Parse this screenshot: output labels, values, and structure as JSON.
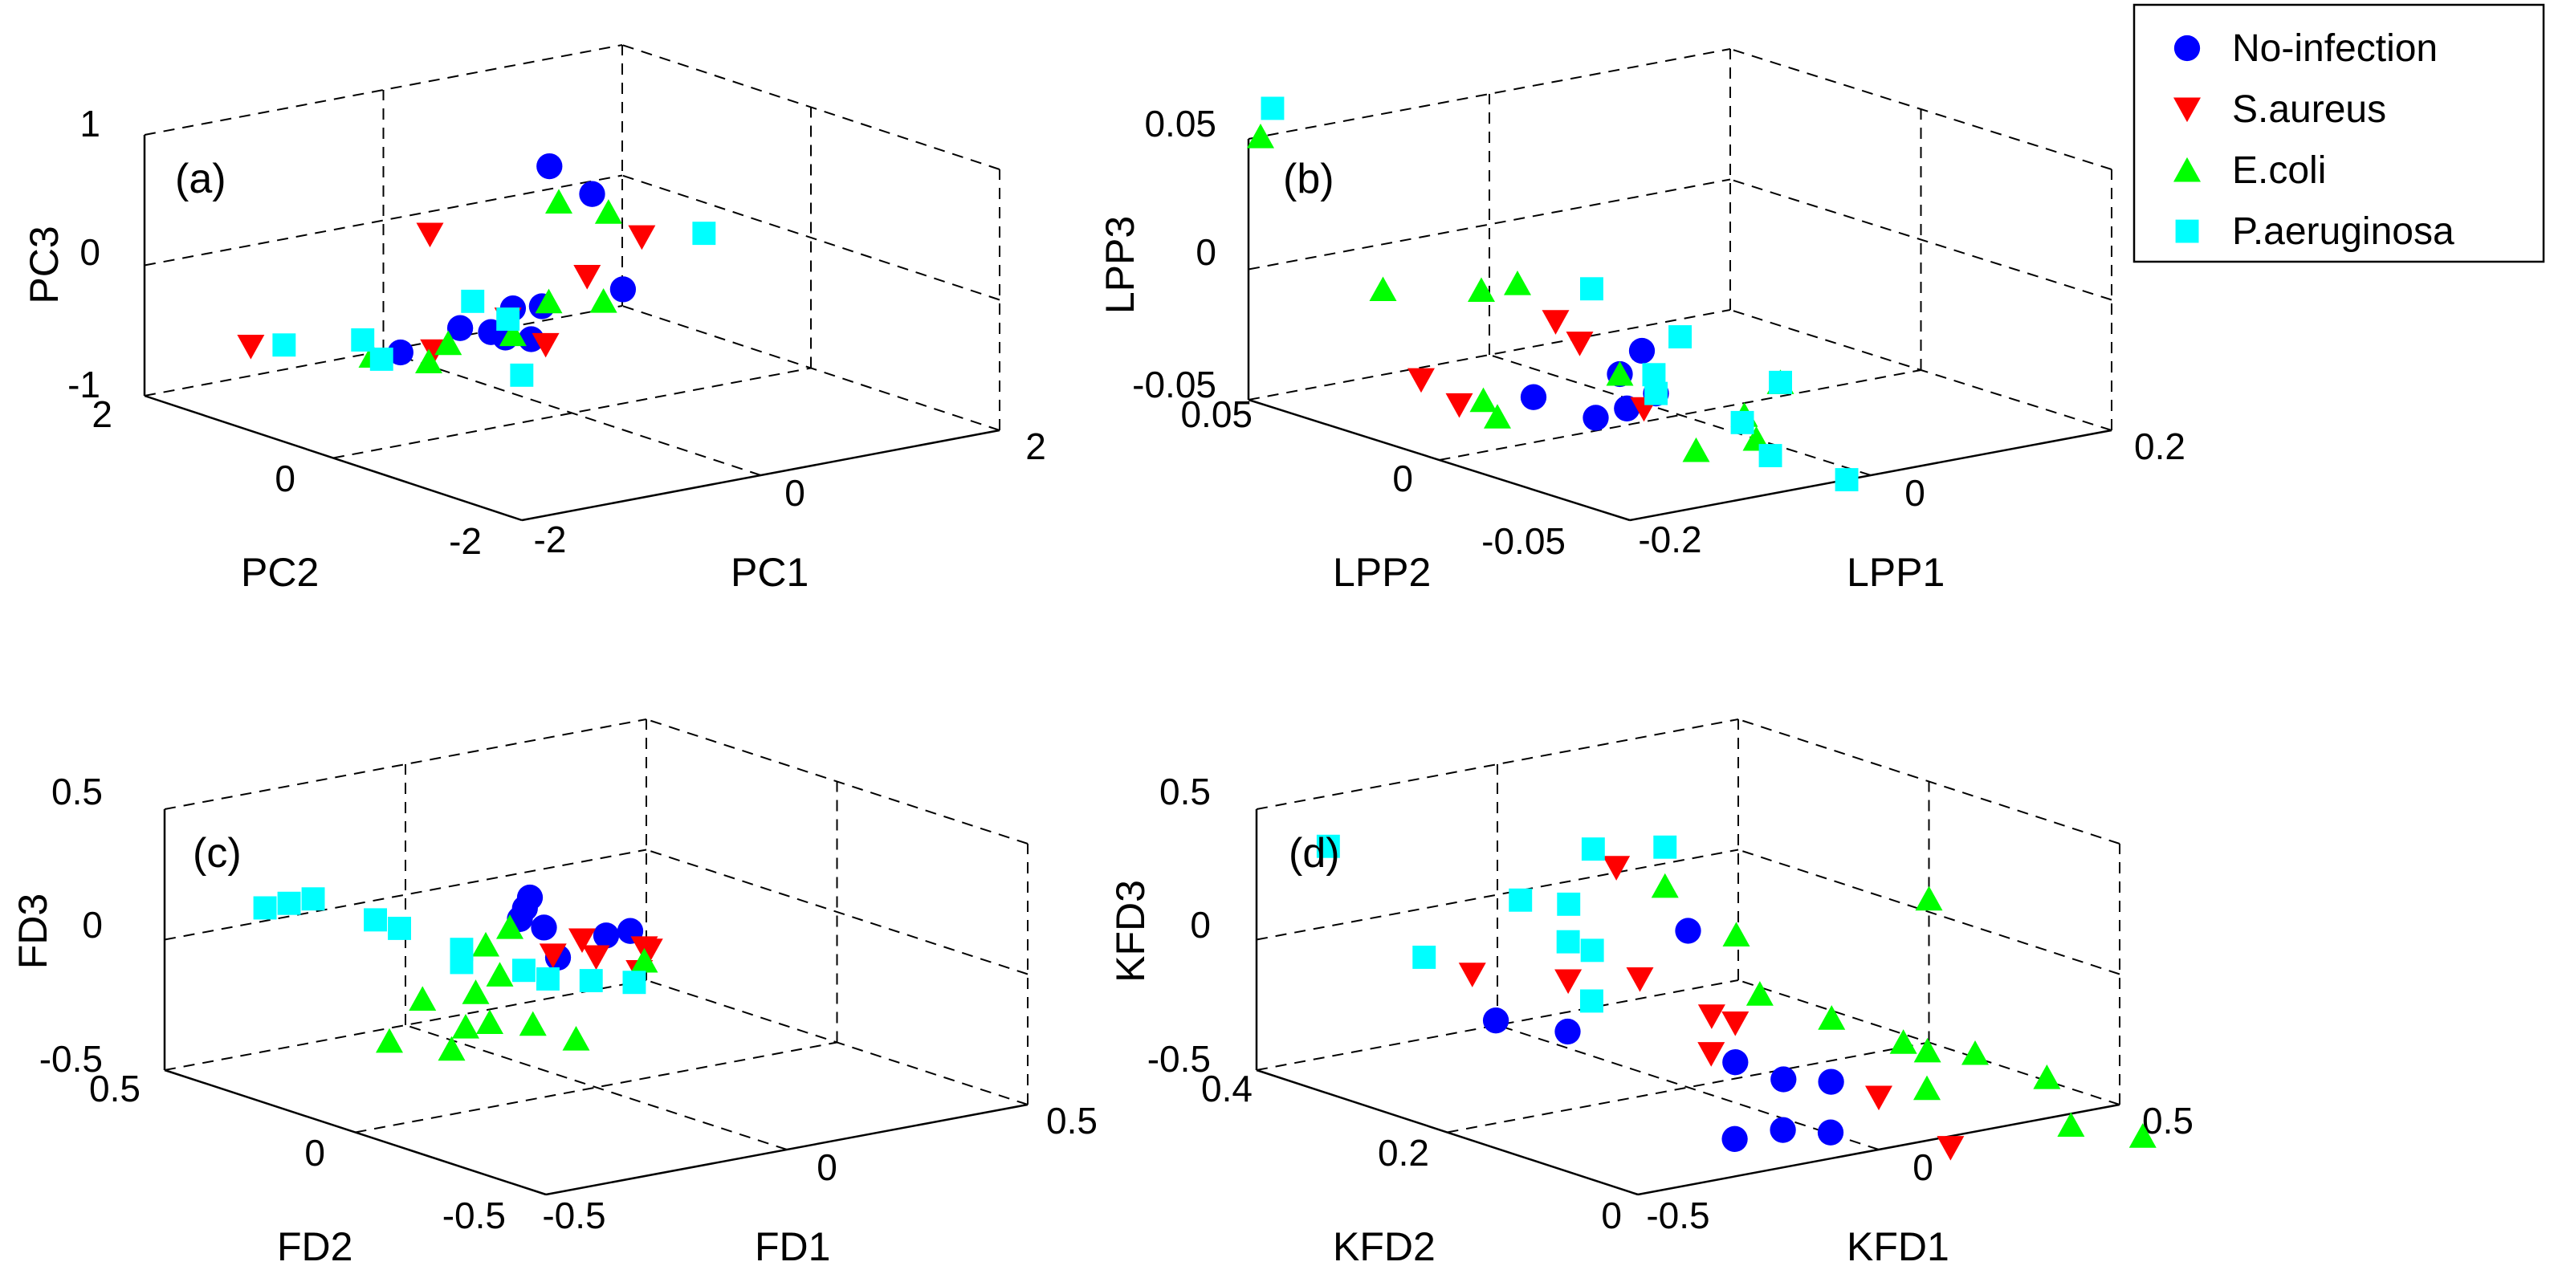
{
  "legend": {
    "position": "top-right",
    "entries": [
      {
        "label": "No-infection",
        "marker": "circle",
        "color": "#0000ff"
      },
      {
        "label": "S.aureus",
        "marker": "triangle-down",
        "color": "#ff0000"
      },
      {
        "label": "E.coli",
        "marker": "triangle-up",
        "color": "#00ff00"
      },
      {
        "label": "P.aeruginosa",
        "marker": "square",
        "color": "#00ffff"
      }
    ]
  },
  "chart_data": [
    {
      "type": "scatter",
      "panel": "(a)",
      "xlabel": "PC1",
      "ylabel": "PC2",
      "zlabel": "PC3",
      "xlim": [
        -2,
        2
      ],
      "ylim": [
        -2,
        2
      ],
      "zlim": [
        -1,
        1
      ],
      "xticks": [
        "-2",
        "0",
        "2"
      ],
      "yticks": [
        "-2",
        "0",
        "2"
      ],
      "zticks": [
        "-1",
        "0",
        "1"
      ],
      "series": [
        {
          "name": "No-infection",
          "points": [
            [
              0.6,
              1.0,
              0.55
            ],
            [
              0.8,
              0.8,
              0.35
            ],
            [
              0.9,
              0.6,
              -0.35
            ],
            [
              0.3,
              0.7,
              -0.4
            ],
            [
              -0.4,
              0.2,
              -0.4
            ],
            [
              -0.1,
              0.5,
              -0.3
            ],
            [
              -0.7,
              0.3,
              -0.3
            ],
            [
              -1.2,
              0.3,
              -0.4
            ],
            [
              -0.5,
              -0.2,
              -0.3
            ],
            [
              -0.6,
              0.1,
              -0.3
            ]
          ]
        },
        {
          "name": "S.aureus",
          "points": [
            [
              -0.4,
              1.0,
              0.2
            ],
            [
              0.6,
              0.6,
              -0.2
            ],
            [
              0.9,
              0.4,
              0.1
            ],
            [
              -0.3,
              0.3,
              -0.3
            ],
            [
              -1.9,
              1.0,
              -0.4
            ],
            [
              -1.0,
              0.2,
              -0.4
            ],
            [
              -0.3,
              -0.1,
              -0.4
            ]
          ]
        },
        {
          "name": "E.coli",
          "points": [
            [
              0.6,
              0.9,
              0.3
            ],
            [
              0.7,
              0.5,
              0.3
            ],
            [
              0.2,
              0.5,
              -0.3
            ],
            [
              0.5,
              0.3,
              -0.3
            ],
            [
              -0.1,
              0.5,
              -0.5
            ],
            [
              -1.2,
              0.6,
              -0.5
            ],
            [
              -0.8,
              0.3,
              -0.4
            ],
            [
              -1.2,
              0.0,
              -0.4
            ]
          ]
        },
        {
          "name": "P.aeruginosa",
          "points": [
            [
              1.5,
              0.5,
              0.0
            ],
            [
              -0.2,
              0.8,
              -0.3
            ],
            [
              -0.3,
              0.3,
              -0.3
            ],
            [
              -1.2,
              0.7,
              -0.4
            ],
            [
              -0.5,
              -0.1,
              -0.6
            ],
            [
              -1.2,
              0.5,
              -0.5
            ],
            [
              -1.7,
              0.9,
              -0.4
            ]
          ]
        }
      ]
    },
    {
      "type": "scatter",
      "panel": "(b)",
      "xlabel": "LPP1",
      "ylabel": "LPP2",
      "zlabel": "LPP3",
      "xlim": [
        -0.2,
        0.2
      ],
      "ylim": [
        -0.05,
        0.05
      ],
      "zlim": [
        -0.05,
        0.05
      ],
      "xticks": [
        "-0.2",
        "0",
        "0.2"
      ],
      "yticks": [
        "-0.05",
        "0",
        "0.05"
      ],
      "zticks": [
        "-0.05",
        "0",
        "0.05"
      ],
      "series": [
        {
          "name": "No-infection",
          "points": [
            [
              -0.05,
              0.0,
              -0.03
            ],
            [
              -0.06,
              -0.005,
              -0.04
            ],
            [
              -0.07,
              0.0,
              -0.045
            ],
            [
              -0.02,
              0.0,
              -0.04
            ],
            [
              -0.09,
              0.01,
              -0.04
            ],
            [
              0.0,
              0.01,
              -0.03
            ]
          ]
        },
        {
          "name": "S.aureus",
          "points": [
            [
              -0.12,
              0.03,
              -0.04
            ],
            [
              -0.12,
              0.02,
              -0.045
            ],
            [
              -0.04,
              0.02,
              -0.02
            ],
            [
              -0.02,
              0.02,
              -0.03
            ],
            [
              -0.03,
              0.0,
              -0.045
            ]
          ]
        },
        {
          "name": "E.coli",
          "points": [
            [
              -0.19,
              0.05,
              0.05
            ],
            [
              -0.12,
              0.04,
              -0.01
            ],
            [
              -0.07,
              0.03,
              -0.01
            ],
            [
              -0.04,
              0.03,
              -0.01
            ],
            [
              -0.12,
              0.01,
              -0.045
            ],
            [
              -0.1,
              0.02,
              -0.045
            ],
            [
              -0.05,
              0.0,
              -0.03
            ],
            [
              -0.01,
              -0.02,
              -0.04
            ],
            [
              0.0,
              -0.02,
              -0.05
            ],
            [
              -0.05,
              -0.02,
              -0.05
            ],
            [
              0.02,
              -0.02,
              -0.03
            ]
          ]
        },
        {
          "name": "P.aeruginosa",
          "points": [
            [
              -0.18,
              0.05,
              0.06
            ],
            [
              -0.01,
              0.02,
              -0.01
            ],
            [
              0.0,
              0.0,
              -0.02
            ],
            [
              0.02,
              -0.02,
              -0.03
            ],
            [
              -0.02,
              -0.03,
              -0.05
            ],
            [
              -0.02,
              -0.05,
              -0.05
            ],
            [
              0.02,
              -0.01,
              -0.05
            ],
            [
              0.01,
              0.01,
              -0.04
            ],
            [
              -0.02,
              0.0,
              -0.04
            ]
          ]
        }
      ]
    },
    {
      "type": "scatter",
      "panel": "(c)",
      "xlabel": "FD1",
      "ylabel": "FD2",
      "zlabel": "FD3",
      "xlim": [
        -0.5,
        0.5
      ],
      "ylim": [
        -0.5,
        0.5
      ],
      "zlim": [
        -0.5,
        0.5
      ],
      "xticks": [
        "-0.5",
        "0",
        "0.5"
      ],
      "yticks": [
        "-0.5",
        "0",
        "0.5"
      ],
      "zticks": [
        "-0.5",
        "0",
        "0.5"
      ],
      "series": [
        {
          "name": "No-infection",
          "points": [
            [
              0.1,
              0.3,
              0.05
            ],
            [
              0.05,
              0.25,
              0.05
            ],
            [
              0.0,
              0.2,
              0.05
            ],
            [
              0.1,
              0.1,
              0.0
            ],
            [
              0.05,
              0.2,
              0.0
            ],
            [
              0.15,
              0.1,
              0.0
            ],
            [
              0.0,
              0.1,
              -0.05
            ]
          ]
        },
        {
          "name": "S.aureus",
          "points": [
            [
              0.05,
              0.1,
              0.0
            ],
            [
              0.0,
              0.0,
              0.0
            ],
            [
              -0.05,
              0.05,
              0.0
            ],
            [
              0.1,
              0.0,
              0.0
            ],
            [
              0.15,
              0.05,
              -0.05
            ],
            [
              0.05,
              -0.05,
              -0.05
            ]
          ]
        },
        {
          "name": "E.coli",
          "points": [
            [
              -0.1,
              0.1,
              0.1
            ],
            [
              -0.15,
              0.1,
              0.05
            ],
            [
              -0.2,
              0.0,
              0.0
            ],
            [
              -0.25,
              0.0,
              -0.05
            ],
            [
              -0.3,
              -0.1,
              -0.1
            ],
            [
              -0.35,
              -0.1,
              -0.1
            ],
            [
              -0.2,
              -0.2,
              -0.15
            ],
            [
              -0.4,
              -0.05,
              0.0
            ],
            [
              -0.25,
              -0.15,
              -0.1
            ],
            [
              0.1,
              0.0,
              -0.05
            ],
            [
              -0.3,
              0.0,
              -0.25
            ],
            [
              -0.35,
              0.1,
              -0.25
            ]
          ]
        },
        {
          "name": "P.aeruginosa",
          "points": [
            [
              -0.45,
              0.3,
              0.2
            ],
            [
              -0.4,
              0.3,
              0.2
            ],
            [
              -0.35,
              0.3,
              0.2
            ],
            [
              -0.3,
              0.2,
              0.15
            ],
            [
              -0.25,
              0.2,
              0.1
            ],
            [
              -0.2,
              0.1,
              0.05
            ],
            [
              -0.15,
              0.0,
              0.0
            ],
            [
              -0.1,
              0.0,
              -0.05
            ],
            [
              -0.05,
              -0.05,
              -0.05
            ],
            [
              0.0,
              -0.1,
              -0.05
            ],
            [
              -0.2,
              0.1,
              0.0
            ]
          ]
        }
      ]
    },
    {
      "type": "scatter",
      "panel": "(d)",
      "xlabel": "KFD1",
      "ylabel": "KFD2",
      "zlabel": "KFD3",
      "xlim": [
        -0.5,
        0.5
      ],
      "ylim": [
        0,
        0.4
      ],
      "zlim": [
        -0.5,
        0.5
      ],
      "xticks": [
        "-0.5",
        "0",
        "0.5"
      ],
      "yticks": [
        "0",
        "0.2",
        "0.4"
      ],
      "zticks": [
        "-0.5",
        "0",
        "0.5"
      ],
      "series": [
        {
          "name": "No-infection",
          "points": [
            [
              0.0,
              0.2,
              0.1
            ],
            [
              -0.3,
              0.25,
              -0.2
            ],
            [
              -0.25,
              0.2,
              -0.2
            ],
            [
              -0.1,
              0.1,
              -0.25
            ],
            [
              0.0,
              0.05,
              -0.3
            ],
            [
              -0.1,
              0.0,
              -0.4
            ],
            [
              -0.1,
              0.05,
              -0.45
            ],
            [
              -0.2,
              0.05,
              -0.45
            ],
            [
              0.0,
              0.1,
              -0.35
            ]
          ]
        },
        {
          "name": "S.aureus",
          "points": [
            [
              -0.05,
              0.25,
              0.3
            ],
            [
              -0.25,
              0.3,
              -0.1
            ],
            [
              -0.15,
              0.25,
              -0.1
            ],
            [
              -0.1,
              0.2,
              -0.05
            ],
            [
              -0.05,
              0.15,
              -0.15
            ],
            [
              -0.1,
              0.1,
              -0.1
            ],
            [
              -0.15,
              0.1,
              -0.2
            ],
            [
              0.0,
              0.0,
              -0.3
            ],
            [
              0.05,
              -0.05,
              -0.45
            ]
          ]
        },
        {
          "name": "E.coli",
          "points": [
            [
              0.15,
              0.3,
              0.1
            ],
            [
              0.1,
              0.2,
              0.05
            ],
            [
              0.05,
              0.15,
              -0.1
            ],
            [
              0.1,
              0.1,
              -0.15
            ],
            [
              0.15,
              0.05,
              -0.2
            ],
            [
              0.2,
              0.0,
              -0.2
            ],
            [
              0.25,
              -0.05,
              -0.25
            ],
            [
              0.1,
              0.0,
              -0.3
            ],
            [
              0.5,
              0.2,
              0.05
            ],
            [
              0.3,
              -0.05,
              -0.45
            ],
            [
              0.35,
              -0.1,
              -0.45
            ],
            [
              0.2,
              0.05,
              -0.25
            ]
          ]
        },
        {
          "name": "P.aeruginosa",
          "points": [
            [
              -0.45,
              0.35,
              0.4
            ],
            [
              -0.35,
              0.3,
              0.0
            ],
            [
              -0.15,
              0.25,
              0.05
            ],
            [
              -0.1,
              0.25,
              0.0
            ],
            [
              -0.05,
              0.3,
              0.1
            ],
            [
              0.1,
              0.35,
              0.2
            ],
            [
              0.15,
              0.3,
              0.25
            ],
            [
              -0.2,
              0.2,
              -0.1
            ],
            [
              -0.15,
              0.3,
              0.15
            ]
          ]
        }
      ]
    }
  ]
}
